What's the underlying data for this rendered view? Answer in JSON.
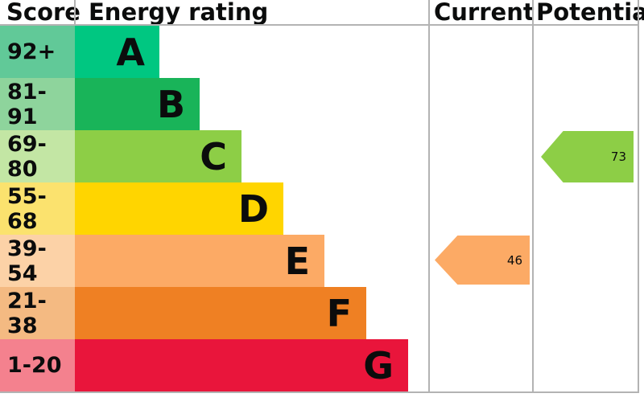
{
  "header": {
    "score": "Score",
    "energy_rating": "Energy rating",
    "current": "Current",
    "potential": "Potential"
  },
  "bands": [
    {
      "letter": "A",
      "score": "92+",
      "color": "#00c781",
      "score_color": "#61c998"
    },
    {
      "letter": "B",
      "score": "81-91",
      "color": "#19b459",
      "score_color": "#8ed49c"
    },
    {
      "letter": "C",
      "score": "69-80",
      "color": "#8dce46",
      "score_color": "#c3e6a4"
    },
    {
      "letter": "D",
      "score": "55-68",
      "color": "#ffd500",
      "score_color": "#fbe26e"
    },
    {
      "letter": "E",
      "score": "39-54",
      "color": "#fcaa65",
      "score_color": "#fcd2a7"
    },
    {
      "letter": "F",
      "score": "21-38",
      "color": "#ef8023",
      "score_color": "#f4ba82"
    },
    {
      "letter": "G",
      "score": "1-20",
      "color": "#e9153b",
      "score_color": "#f4818e"
    }
  ],
  "current": {
    "value": "46",
    "band": "E",
    "color": "#fcaa65"
  },
  "potential": {
    "value": "73",
    "band": "C",
    "color": "#8dce46"
  },
  "chart_data": {
    "type": "bar",
    "orientation": "horizontal",
    "title": "Energy rating",
    "categories": [
      "A",
      "B",
      "C",
      "D",
      "E",
      "F",
      "G"
    ],
    "score_ranges": [
      "92+",
      "81-91",
      "69-80",
      "55-68",
      "39-54",
      "21-38",
      "1-20"
    ],
    "band_colors": [
      "#00c781",
      "#19b459",
      "#8dce46",
      "#ffd500",
      "#fcaa65",
      "#ef8023",
      "#e9153b"
    ],
    "columns": [
      "Score",
      "Energy rating",
      "Current",
      "Potential"
    ],
    "current": {
      "score": 46,
      "band": "E"
    },
    "potential": {
      "score": 73,
      "band": "C"
    },
    "legend_position": "none",
    "grid": false
  }
}
